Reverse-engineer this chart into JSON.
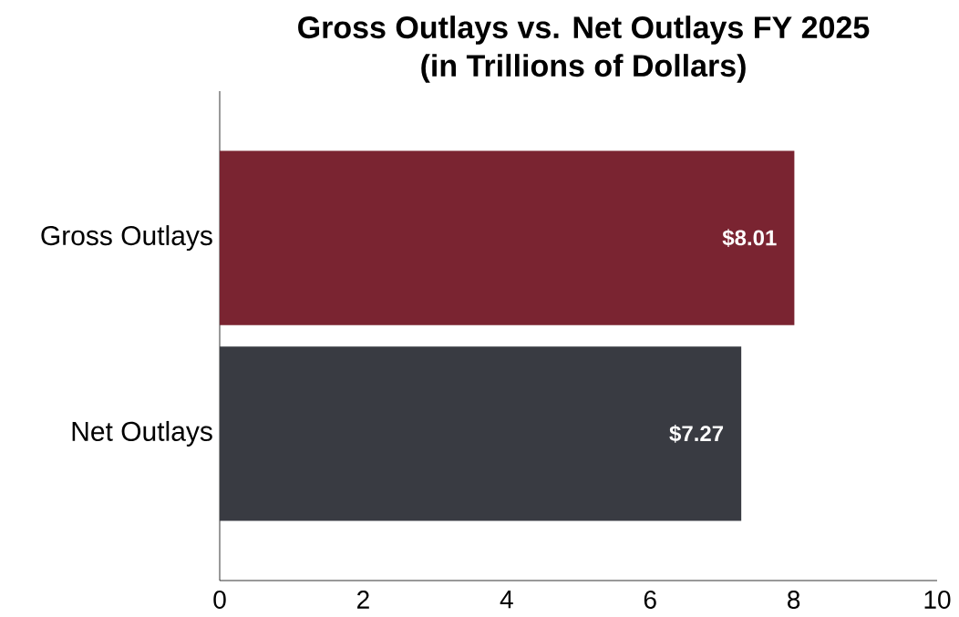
{
  "chart_data": {
    "type": "bar",
    "orientation": "horizontal",
    "title": "Gross Outlays vs. Net Outlays FY 2025",
    "subtitle": "(in Trillions of Dollars)",
    "categories": [
      "Gross Outlays",
      "Net Outlays"
    ],
    "values": [
      8.01,
      7.27
    ],
    "colors": [
      "#7a2431",
      "#393b42"
    ],
    "value_labels": [
      "$8.01",
      "$7.27"
    ],
    "xlim": [
      0,
      10
    ],
    "xticks": [
      0,
      2,
      4,
      6,
      8,
      10
    ],
    "grid": false,
    "legend": false
  }
}
